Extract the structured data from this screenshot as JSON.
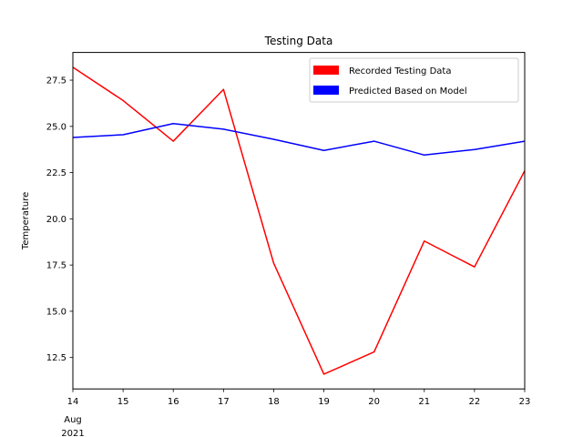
{
  "chart_data": {
    "type": "line",
    "title": "Testing Data",
    "xlabel": "",
    "ylabel": "Temperature",
    "x": [
      "2021-08-14",
      "2021-08-15",
      "2021-08-16",
      "2021-08-17",
      "2021-08-18",
      "2021-08-19",
      "2021-08-20",
      "2021-08-21",
      "2021-08-22",
      "2021-08-23"
    ],
    "x_tick_labels": [
      "14",
      "15",
      "16",
      "17",
      "18",
      "19",
      "20",
      "21",
      "22",
      "23"
    ],
    "x_tick_sublabels": {
      "month": "Aug",
      "year": "2021"
    },
    "xlim": [
      "2021-08-14",
      "2021-08-23"
    ],
    "ylim": [
      10.8,
      29.0
    ],
    "y_ticks": [
      12.5,
      15.0,
      17.5,
      20.0,
      22.5,
      25.0,
      27.5
    ],
    "y_tick_labels": [
      "12.5",
      "15.0",
      "17.5",
      "20.0",
      "22.5",
      "25.0",
      "27.5"
    ],
    "grid": false,
    "legend_position": "top-right",
    "series": [
      {
        "name": "Recorded Testing Data",
        "color": "#ff0000",
        "values": [
          28.2,
          26.4,
          24.2,
          27.0,
          17.6,
          11.6,
          12.8,
          18.8,
          17.4,
          22.6
        ]
      },
      {
        "name": "Predicted Based on Model",
        "color": "#0000ff",
        "values": [
          24.4,
          24.55,
          25.15,
          24.85,
          24.3,
          23.7,
          24.2,
          23.45,
          23.75,
          24.2
        ]
      }
    ]
  }
}
